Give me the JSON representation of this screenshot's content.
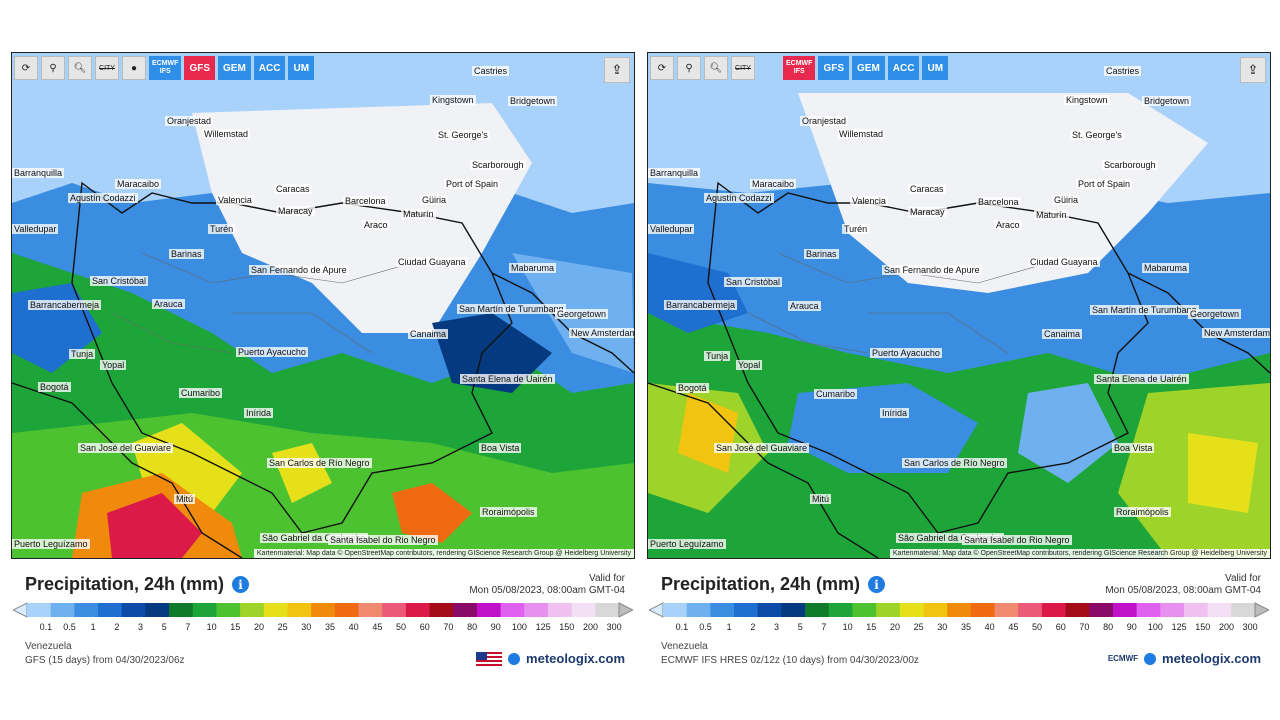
{
  "panels": [
    {
      "toolbar": {
        "icons": [
          "refresh-icon",
          "location-icon",
          "zoom-icon",
          "city-toggle-icon",
          "dot-icon"
        ],
        "city_label": "CITY",
        "models": [
          {
            "label": "ECMWF\nIFS",
            "active": false
          },
          {
            "label": "GFS",
            "active": true
          },
          {
            "label": "GEM",
            "active": false
          },
          {
            "label": "ACC",
            "active": false
          },
          {
            "label": "UM",
            "active": false
          }
        ]
      },
      "attribution": "Kartenmaterial: Map data © OpenStreetMap contributors, rendering GIScience Research Group @ Heidelberg University",
      "title": "Precipitation, 24h (mm)",
      "valid_label": "Valid for",
      "valid_time": "Mon 05/08/2023, 08:00am GMT-04",
      "region": "Venezuela",
      "model_run": "GFS (15 days) from 04/30/2023/06z",
      "brand": "meteologix.com"
    },
    {
      "toolbar": {
        "icons": [
          "refresh-icon",
          "location-icon",
          "zoom-icon",
          "city-toggle-icon"
        ],
        "city_label": "CITY",
        "models": [
          {
            "label": "ECMWF\nIFS",
            "active": true
          },
          {
            "label": "GFS",
            "active": false
          },
          {
            "label": "GEM",
            "active": false
          },
          {
            "label": "ACC",
            "active": false
          },
          {
            "label": "UM",
            "active": false
          }
        ]
      },
      "attribution": "Kartenmaterial: Map data © OpenStreetMap contributors, rendering GIScience Research Group @ Heidelberg University",
      "title": "Precipitation, 24h (mm)",
      "valid_label": "Valid for",
      "valid_time": "Mon 05/08/2023, 08:00am GMT-04",
      "region": "Venezuela",
      "model_run": "ECMWF IFS HRES 0z/12z (10 days) from 04/30/2023/00z",
      "brand": "meteologix.com",
      "ecmwf_logo": "ECMWF"
    }
  ],
  "cities": [
    "Castries",
    "Kingstown",
    "Bridgetown",
    "St. George's",
    "Oranjestad",
    "Willemstad",
    "Scarborough",
    "Port of Spain",
    "Barranquilla",
    "Maracaibo",
    "Caracas",
    "Valencia",
    "Barcelona",
    "Güiria",
    "Maracay",
    "Maturín",
    "Agustín Codazzi",
    "Araco",
    "Valledupar",
    "Turén",
    "Barinas",
    "Ciudad Guayana",
    "Mabaruma",
    "San Cristóbal",
    "San Fernando de Apure",
    "Barrancabermeja",
    "Arauca",
    "San Martín de Turumbang",
    "Georgetown",
    "New Amsterdam",
    "Canaima",
    "Tunja",
    "Yopal",
    "Puerto Ayacucho",
    "Bogotá",
    "Cumaribo",
    "Santa Elena de Uairén",
    "Inírida",
    "San José del Guaviare",
    "Boa Vista",
    "San Carlos de Río Negro",
    "Mitú",
    "Roraimópolis",
    "São Gabriel da Cachoeira",
    "Santa Isabel do Rio Negro",
    "Puerto Leguízamo"
  ],
  "legend": {
    "colors": [
      "#d8ecff",
      "#a9d2fa",
      "#6fb1f0",
      "#3a8de0",
      "#1e6fd0",
      "#0b4aa6",
      "#063a80",
      "#0f7a2a",
      "#1ea53a",
      "#4cc230",
      "#9ed42a",
      "#e6e01a",
      "#f2c40f",
      "#f08a0c",
      "#ef6a10",
      "#f08a6e",
      "#ec5a7a",
      "#dc1a4a",
      "#a30c18",
      "#8a0a6a",
      "#c010c8",
      "#e060f0",
      "#e890f0",
      "#f0c0f0",
      "#f4e0f4",
      "#d8d8d8",
      "#bcbcbc"
    ],
    "ticks": [
      "0.1",
      "0.5",
      "1",
      "2",
      "3",
      "5",
      "7",
      "10",
      "15",
      "20",
      "25",
      "30",
      "35",
      "40",
      "45",
      "50",
      "60",
      "70",
      "80",
      "90",
      "100",
      "125",
      "150",
      "200",
      "300"
    ]
  }
}
